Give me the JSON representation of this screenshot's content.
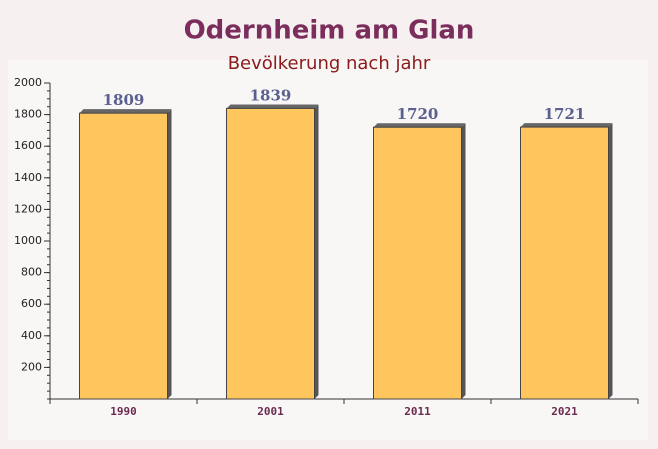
{
  "chart_data": {
    "type": "bar",
    "title": "Odernheim am Glan",
    "subtitle": "Bevölkerung nach jahr",
    "categories": [
      "1990",
      "2001",
      "2011",
      "2021"
    ],
    "values": [
      1809,
      1839,
      1720,
      1721
    ],
    "color": "#ffc14d",
    "ylim": [
      0,
      2000
    ],
    "yticks": [
      200,
      400,
      600,
      800,
      1000,
      1200,
      1400,
      1600,
      1800,
      2000
    ]
  }
}
